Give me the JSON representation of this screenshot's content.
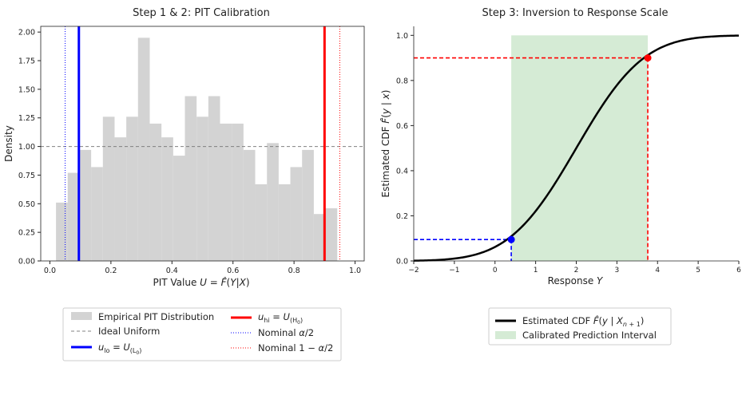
{
  "chart_data": [
    {
      "type": "bar",
      "title": "Step 1 & 2: PIT Calibration",
      "xlabel": "PIT Value U = F̂(Y|X)",
      "ylabel": "Density",
      "xlim": [
        -0.03,
        1.03
      ],
      "ylim": [
        0,
        2.05
      ],
      "xticks": [
        "0.0",
        "0.2",
        "0.4",
        "0.6",
        "0.8",
        "1.0"
      ],
      "yticks": [
        "0.00",
        "0.25",
        "0.50",
        "0.75",
        "1.00",
        "1.25",
        "1.50",
        "1.75",
        "2.00"
      ],
      "bins": {
        "start": 0.02,
        "width": 0.0384,
        "values": [
          0.51,
          0.77,
          0.97,
          0.82,
          1.26,
          1.08,
          1.26,
          1.95,
          1.2,
          1.08,
          0.92,
          1.44,
          1.26,
          1.44,
          1.2,
          1.2,
          0.97,
          0.67,
          1.03,
          0.67,
          0.82,
          0.97,
          0.41,
          0.46
        ]
      },
      "reference_line": {
        "name": "Ideal Uniform",
        "y": 1.0,
        "color": "#808080"
      },
      "vlines": [
        {
          "name": "u_lo = U_(L0)",
          "x": 0.095,
          "color": "#0000ff",
          "style": "solid"
        },
        {
          "name": "u_hi = U_(H0)",
          "x": 0.9,
          "color": "#ff0000",
          "style": "solid"
        },
        {
          "name": "Nominal α/2",
          "x": 0.05,
          "color": "#0000ff",
          "style": "dotted"
        },
        {
          "name": "Nominal 1 − α/2",
          "x": 0.95,
          "color": "#ff0000",
          "style": "dotted"
        }
      ],
      "legend": {
        "placement": "bottom",
        "items": [
          {
            "label": "Empirical PIT Distribution",
            "kind": "patch",
            "color": "#d3d3d3"
          },
          {
            "label_main": "u",
            "label_sub": "hi",
            "label_rest": " = U",
            "label_sub2": "(H",
            "label_sub3": "0",
            "label_end": ")",
            "kind": "line",
            "color": "#ff0000",
            "dash": "none",
            "width": 3
          },
          {
            "label": "Ideal Uniform",
            "kind": "line",
            "color": "#808080",
            "dash": "4,3",
            "width": 1
          },
          {
            "label": "Nominal α/2",
            "kind": "line",
            "color": "#0000ff",
            "dash": "1,2",
            "width": 1
          },
          {
            "label_main": "u",
            "label_sub": "lo",
            "label_rest": " = U",
            "label_sub2": "(L",
            "label_sub3": "0",
            "label_end": ")",
            "kind": "line",
            "color": "#0000ff",
            "dash": "none",
            "width": 3
          },
          {
            "label": "Nominal 1 − α/2",
            "kind": "line",
            "color": "#ff0000",
            "dash": "1,2",
            "width": 1
          }
        ]
      }
    },
    {
      "type": "line",
      "title": "Step 3: Inversion to Response Scale",
      "xlabel": "Response Y",
      "ylabel": "Estimated CDF F̂(y | x)",
      "xlim": [
        -2,
        6
      ],
      "ylim": [
        0,
        1.04
      ],
      "xticks": [
        "−2",
        "−1",
        "0",
        "1",
        "2",
        "3",
        "4",
        "5",
        "6"
      ],
      "yticks": [
        "0.0",
        "0.2",
        "0.4",
        "0.6",
        "0.8",
        "1.0"
      ],
      "cdf": {
        "name": "Estimated CDF F̂(y | X_{n+1})",
        "mean": 2.0,
        "sd": 1.3,
        "color": "#000000"
      },
      "interval": {
        "name": "Calibrated Prediction Interval",
        "x_lo": 0.4,
        "x_hi": 3.76,
        "color": "#d5ebd5"
      },
      "points": [
        {
          "x": 0.4,
          "y": 0.095,
          "color": "#0000ff"
        },
        {
          "x": 3.76,
          "y": 0.9,
          "color": "#ff0000"
        }
      ],
      "legend": {
        "placement": "bottom",
        "items": [
          {
            "label": "Estimated CDF F̂(y | X",
            "label_sub": "n + 1",
            "label_end": ")",
            "kind": "line",
            "color": "#000000"
          },
          {
            "label": "Calibrated Prediction Interval",
            "kind": "patch",
            "color": "#d5ebd5"
          }
        ]
      }
    }
  ]
}
